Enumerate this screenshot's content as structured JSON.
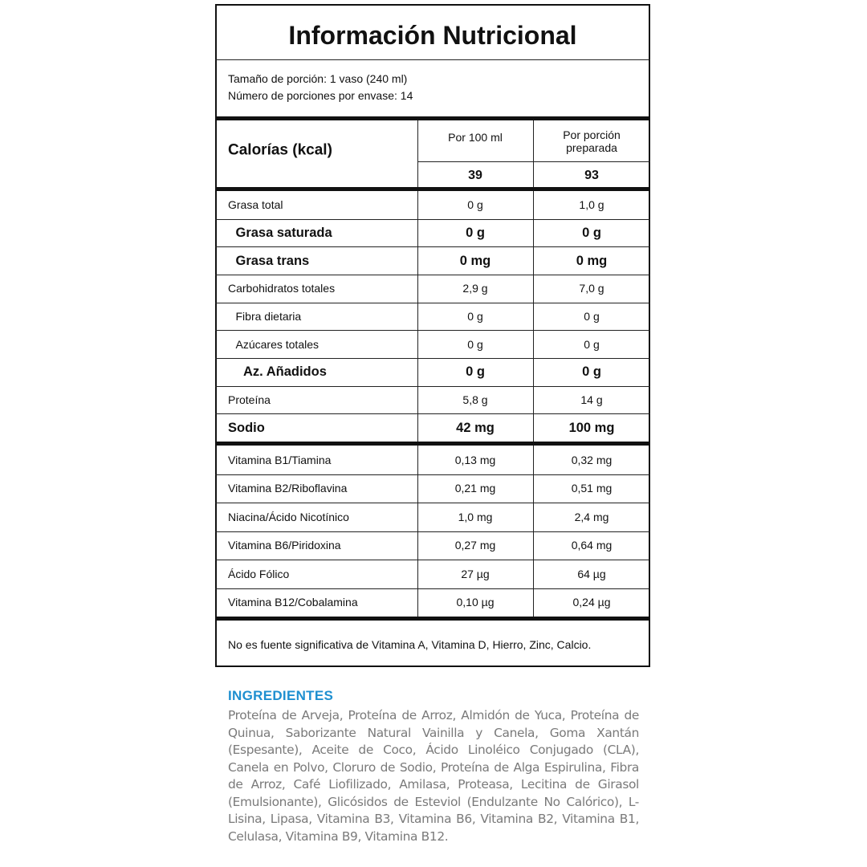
{
  "header": {
    "title": "Información Nutricional"
  },
  "serving": [
    "Tamaño de porción: 1 vaso (240 ml)",
    "Número de porciones por envase: 14"
  ],
  "calories": {
    "label": "Calorías (kcal)",
    "columns": [
      "Por 100 ml",
      "Por porción preparada"
    ],
    "values": [
      "39",
      "93"
    ]
  },
  "nutrients": [
    [
      "Grasa total",
      "0 g",
      "1,0 g"
    ],
    [
      "Grasa saturada",
      "0 g",
      "0 g"
    ],
    [
      "Grasa trans",
      "0 mg",
      "0 mg"
    ],
    [
      "Carbohidratos totales",
      "2,9 g",
      "7,0 g"
    ],
    [
      "Fibra dietaria",
      "0 g",
      "0 g"
    ],
    [
      "Azúcares totales",
      "0 g",
      "0 g"
    ],
    [
      "Az. Añadidos",
      "0 g",
      "0 g"
    ],
    [
      "Proteína",
      "5,8 g",
      "14 g"
    ],
    [
      "Sodio",
      "42 mg",
      "100 mg"
    ]
  ],
  "vitamins": [
    [
      "Vitamina B1/Tiamina",
      "0,13 mg",
      "0,32 mg"
    ],
    [
      "Vitamina B2/Riboflavina",
      "0,21 mg",
      "0,51 mg"
    ],
    [
      "Niacina/Ácido Nicotínico",
      "1,0 mg",
      "2,4 mg"
    ],
    [
      "Vitamina B6/Piridoxina",
      "0,27 mg",
      "0,64 mg"
    ],
    [
      "Ácido Fólico",
      "27 µg",
      "64 µg"
    ],
    [
      "Vitamina B12/Cobalamina",
      "0,10 µg",
      "0,24 µg"
    ]
  ],
  "footer": "No es fuente significativa de Vitamina A, Vitamina D, Hierro, Zinc, Calcio.",
  "ingredients": {
    "title": "INGREDIENTES",
    "text": "Proteína de Arveja, Proteína de Arroz, Almidón de Yuca, Proteína de Quinua, Saborizante Natural Vainilla y Canela, Goma Xantán (Espesante), Aceite de Coco, Ácido Linoléico Conjugado (CLA), Canela en Polvo, Cloruro de Sodio, Proteína de Alga Espirulina, Fibra de Arroz, Café Liofilizado, Amilasa, Proteasa, Lecitina de Girasol (Emulsionante), Glicósidos de Esteviol (Endulzante No Calórico), L-Lisina, Lipasa, Vitamina B3, Vitamina B6, Vitamina B2, Vitamina B1, Celulasa, Vitamina B9, Vitamina B12."
  }
}
